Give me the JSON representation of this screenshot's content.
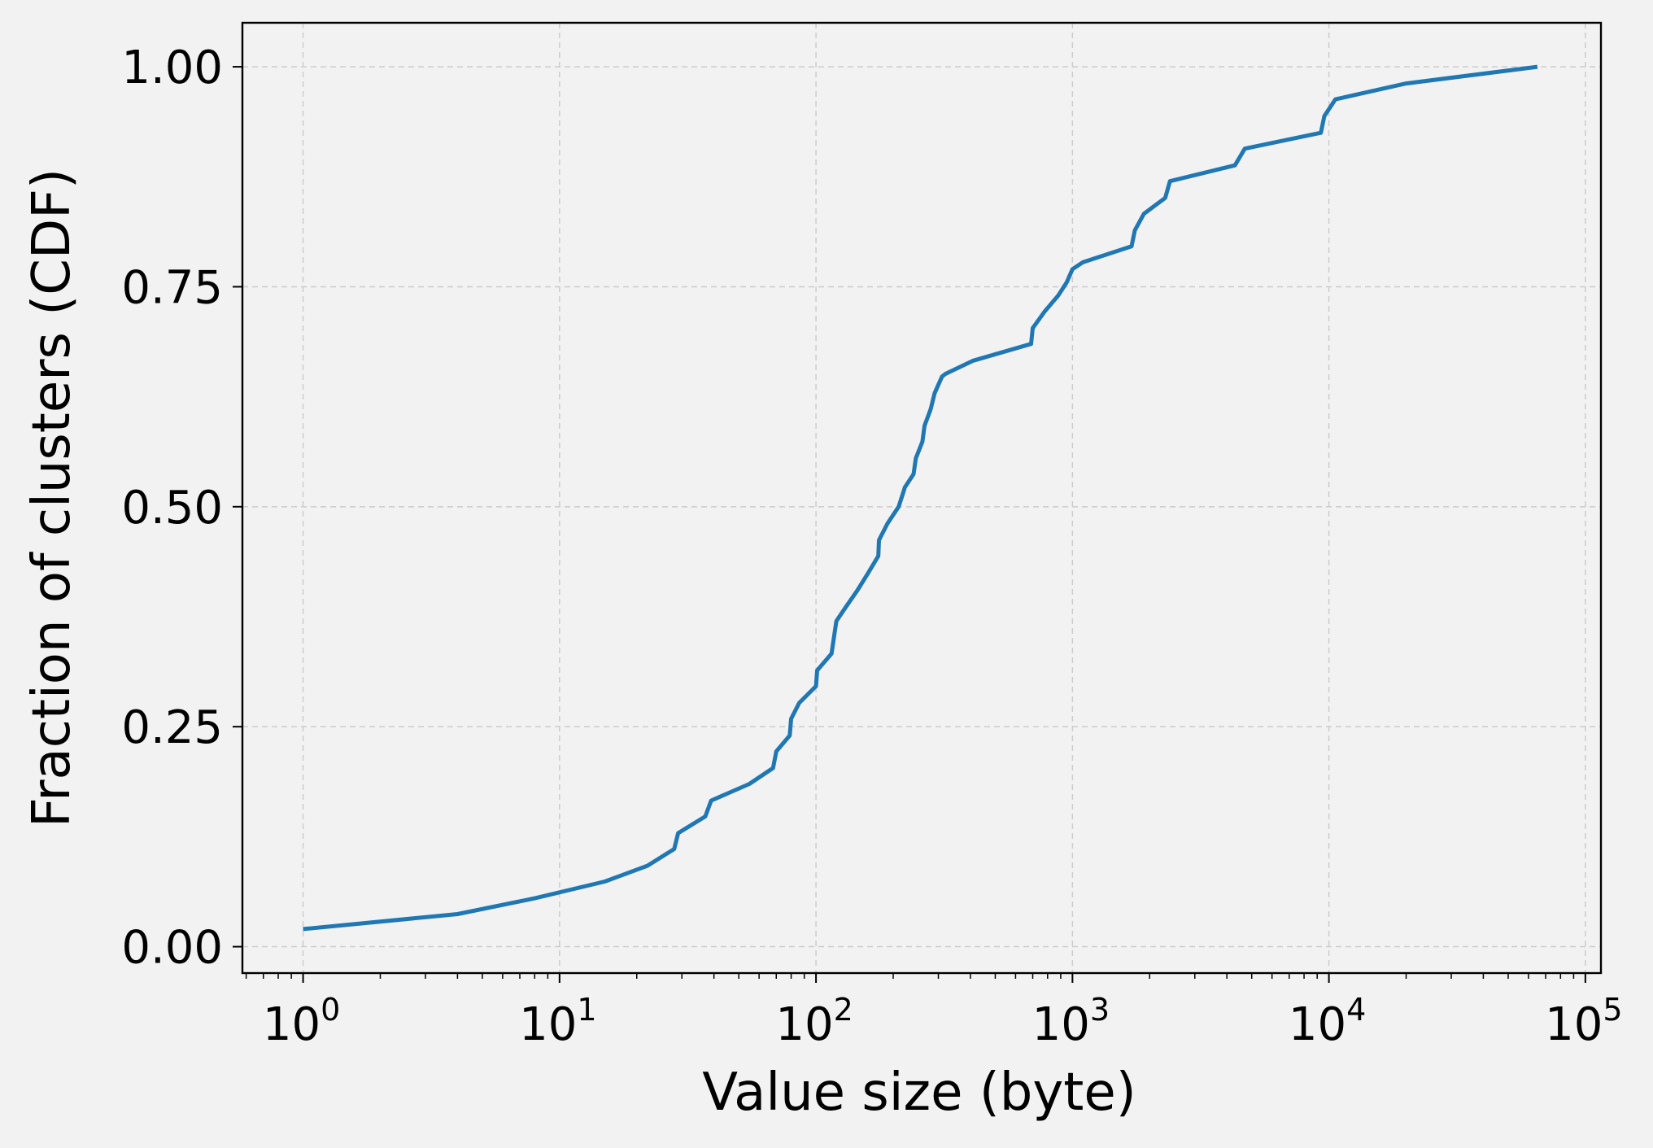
{
  "chart_data": {
    "type": "line",
    "title": "",
    "xlabel": "Value size (byte)",
    "ylabel": "Fraction of clusters (CDF)",
    "xscale": "log",
    "xlim": [
      0.58,
      115000
    ],
    "ylim": [
      -0.03,
      1.05
    ],
    "grid": true,
    "legend": "none",
    "x_ticks": [
      {
        "base": "10",
        "exp": "0",
        "value": 1
      },
      {
        "base": "10",
        "exp": "1",
        "value": 10
      },
      {
        "base": "10",
        "exp": "2",
        "value": 100
      },
      {
        "base": "10",
        "exp": "3",
        "value": 1000
      },
      {
        "base": "10",
        "exp": "4",
        "value": 10000
      },
      {
        "base": "10",
        "exp": "5",
        "value": 100000
      }
    ],
    "y_ticks": [
      {
        "label": "0.00",
        "value": 0.0
      },
      {
        "label": "0.25",
        "value": 0.25
      },
      {
        "label": "0.50",
        "value": 0.5
      },
      {
        "label": "0.75",
        "value": 0.75
      },
      {
        "label": "1.00",
        "value": 1.0
      }
    ],
    "series": [
      {
        "color": "#1f77b4",
        "x": [
          1,
          4,
          8,
          15,
          22,
          28,
          29,
          37,
          39,
          55,
          68,
          70,
          79,
          80,
          86,
          100,
          101,
          115,
          120,
          130,
          145,
          160,
          175,
          176,
          190,
          210,
          220,
          222,
          240,
          245,
          260,
          265,
          280,
          290,
          310,
          320,
          410,
          690,
          700,
          780,
          880,
          950,
          1000,
          1100,
          1700,
          1750,
          1900,
          2300,
          2400,
          4300,
          4700,
          9300,
          9600,
          10600,
          20000,
          65000
        ],
        "y": [
          0.02,
          0.037,
          0.055,
          0.074,
          0.092,
          0.111,
          0.129,
          0.148,
          0.166,
          0.185,
          0.203,
          0.222,
          0.24,
          0.259,
          0.277,
          0.296,
          0.314,
          0.333,
          0.37,
          0.385,
          0.405,
          0.425,
          0.444,
          0.462,
          0.481,
          0.5,
          0.518,
          0.522,
          0.537,
          0.555,
          0.574,
          0.592,
          0.611,
          0.629,
          0.648,
          0.651,
          0.666,
          0.685,
          0.703,
          0.722,
          0.74,
          0.755,
          0.77,
          0.778,
          0.796,
          0.814,
          0.833,
          0.851,
          0.87,
          0.888,
          0.907,
          0.925,
          0.944,
          0.963,
          0.981,
          1.0
        ]
      }
    ]
  }
}
